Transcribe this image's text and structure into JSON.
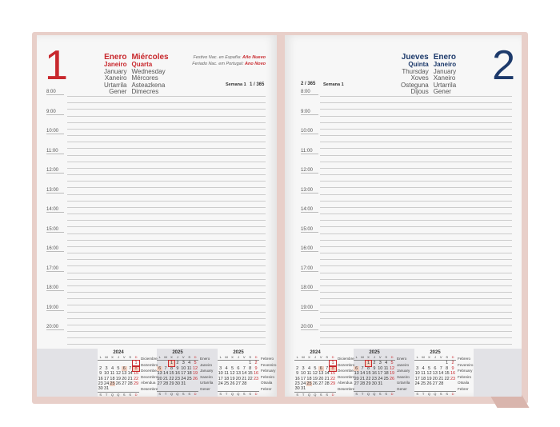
{
  "left_page": {
    "day_number": "1",
    "month": {
      "title": "Enero",
      "bold": "Janeiro",
      "others": [
        "January",
        "Xaneiro",
        "Urtarrila",
        "Gener"
      ]
    },
    "weekday": {
      "title": "Miércoles",
      "bold": "Quarta",
      "others": [
        "Wednesday",
        "Mércores",
        "Asteazkena",
        "Dimecres"
      ]
    },
    "festivals": [
      {
        "label": "Festivo Nac. en España:",
        "name": "Año Nuevo"
      },
      {
        "label": "Feriado Nac. em Portugal:",
        "name": "Ano Novo"
      }
    ],
    "week": "Semana 1",
    "day_of_year": "1 / 365",
    "color": "#c8282d"
  },
  "right_page": {
    "day_number": "2",
    "weekday": {
      "title": "Jueves",
      "bold": "Quinta",
      "others": [
        "Thursday",
        "Xoves",
        "Osteguna",
        "Dijous"
      ]
    },
    "month": {
      "title": "Enero",
      "bold": "Janeiro",
      "others": [
        "January",
        "Xaneiro",
        "Urtarrila",
        "Gener"
      ]
    },
    "week": "Semana 1",
    "day_of_year": "2 / 365",
    "color": "#1d3a6b"
  },
  "hours": [
    "8:00",
    "9:00",
    "10:00",
    "11:00",
    "12:00",
    "13:00",
    "14:00",
    "15:00",
    "16:00",
    "17:00",
    "18:00",
    "19:00",
    "20:00"
  ],
  "calendars": [
    {
      "year": "2024",
      "head": [
        "L",
        "M",
        "X",
        "J",
        "V",
        "S",
        "D"
      ],
      "foot": [
        "S",
        "T",
        "Q",
        "Q",
        "S",
        "S",
        "D"
      ],
      "names": [
        "Diciembre",
        "Dezembro",
        "December",
        "Decembro",
        "Abendua",
        "Desembre"
      ],
      "weeks": [
        [
          "",
          "",
          "",
          "",
          "",
          "",
          "1"
        ],
        [
          "2",
          "3",
          "4",
          "5",
          "6",
          "7",
          "8"
        ],
        [
          "9",
          "10",
          "11",
          "12",
          "13",
          "14",
          "15"
        ],
        [
          "16",
          "17",
          "18",
          "19",
          "20",
          "21",
          "22"
        ],
        [
          "23",
          "24",
          "25",
          "26",
          "27",
          "28",
          "29"
        ],
        [
          "30",
          "31",
          "",
          "",
          "",
          "",
          ""
        ]
      ],
      "highlight": [
        "6",
        "8",
        "25"
      ],
      "boxed": [
        "1",
        "8"
      ]
    },
    {
      "year": "2025",
      "head": [
        "L",
        "M",
        "X",
        "J",
        "V",
        "S",
        "D"
      ],
      "foot": [
        "S",
        "T",
        "Q",
        "Q",
        "S",
        "S",
        "D"
      ],
      "names": [
        "Enero",
        "Janeiro",
        "January",
        "Xaneiro",
        "Urtarrila",
        "Gener"
      ],
      "weeks": [
        [
          "",
          "",
          "1",
          "2",
          "3",
          "4",
          "5"
        ],
        [
          "6",
          "7",
          "8",
          "9",
          "10",
          "11",
          "12"
        ],
        [
          "13",
          "14",
          "15",
          "16",
          "17",
          "18",
          "19"
        ],
        [
          "20",
          "21",
          "22",
          "23",
          "24",
          "25",
          "26"
        ],
        [
          "27",
          "28",
          "29",
          "30",
          "31",
          "",
          ""
        ]
      ],
      "highlight": [
        "1",
        "6"
      ],
      "boxed": [
        "1"
      ]
    },
    {
      "year": "2025",
      "head": [
        "L",
        "M",
        "X",
        "J",
        "V",
        "S",
        "D"
      ],
      "foot": [
        "S",
        "T",
        "Q",
        "Q",
        "S",
        "S",
        "D"
      ],
      "names": [
        "Febrero",
        "Fevereiro",
        "February",
        "Febreiro",
        "Otsaila",
        "Febrer"
      ],
      "weeks": [
        [
          "",
          "",
          "",
          "",
          "",
          "1",
          "2"
        ],
        [
          "3",
          "4",
          "5",
          "6",
          "7",
          "8",
          "9"
        ],
        [
          "10",
          "11",
          "12",
          "13",
          "14",
          "15",
          "16"
        ],
        [
          "17",
          "18",
          "19",
          "20",
          "21",
          "22",
          "23"
        ],
        [
          "24",
          "25",
          "26",
          "27",
          "28",
          "",
          ""
        ]
      ],
      "highlight": [],
      "boxed": []
    }
  ]
}
